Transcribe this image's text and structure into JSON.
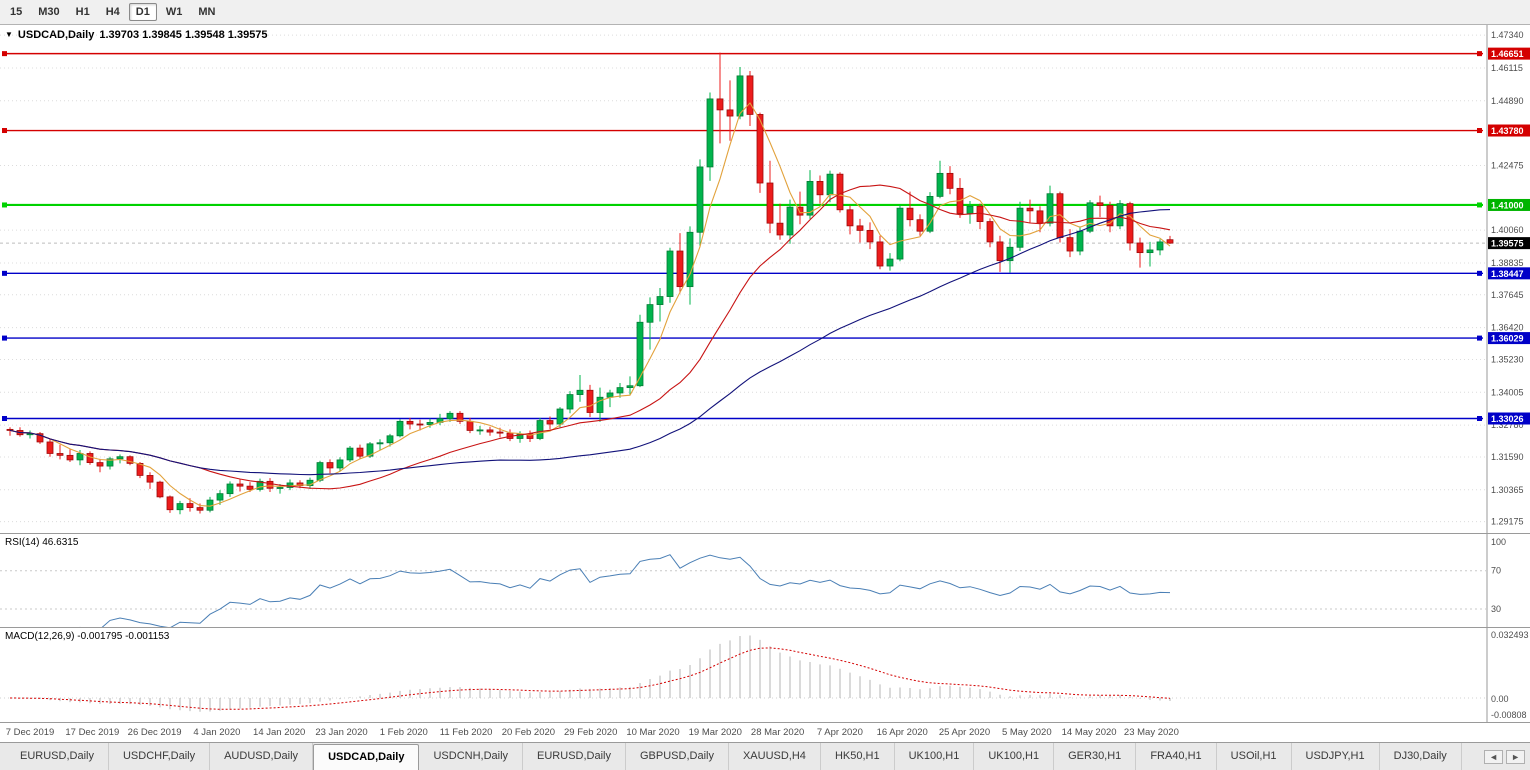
{
  "toolbar": {
    "timeframes": [
      "15",
      "M30",
      "H1",
      "H4",
      "D1",
      "W1",
      "MN"
    ],
    "active_index": 4
  },
  "chart": {
    "collapse_icon": "▼",
    "symbol_label": "USDCAD,Daily",
    "ohlc_text": "1.39703 1.39845 1.39548 1.39575"
  },
  "rsi_panel": {
    "label": "RSI(14) 46.6315"
  },
  "macd_panel": {
    "label": "MACD(12,26,9) -0.001795 -0.001153"
  },
  "tabbar": {
    "tabs": [
      "EURUSD,Daily",
      "USDCHF,Daily",
      "AUDUSD,Daily",
      "USDCAD,Daily",
      "USDCNH,Daily",
      "EURUSD,Daily",
      "GBPUSD,Daily",
      "XAUUSD,H4",
      "HK50,H1",
      "UK100,H1",
      "UK100,H1",
      "GER30,H1",
      "FRA40,H1",
      "USOil,H1",
      "USDJPY,H1",
      "DJ30,Daily"
    ],
    "active_index": 3,
    "scroll_left": "◄",
    "scroll_right": "►"
  },
  "chart_data": {
    "type": "candlestick",
    "symbol": "USDCAD",
    "period": "Daily",
    "current_price": 1.39575,
    "last_bar": {
      "open": 1.39703,
      "high": 1.39845,
      "low": 1.39548,
      "close": 1.39575
    },
    "date_labels": [
      "7 Dec 2019",
      "17 Dec 2019",
      "26 Dec 2019",
      "4 Jan 2020",
      "14 Jan 2020",
      "23 Jan 2020",
      "1 Feb 2020",
      "11 Feb 2020",
      "20 Feb 2020",
      "29 Feb 2020",
      "10 Mar 2020",
      "19 Mar 2020",
      "28 Mar 2020",
      "7 Apr 2020",
      "16 Apr 2020",
      "25 Apr 2020",
      "5 May 2020",
      "14 May 2020",
      "23 May 2020"
    ],
    "price_axis": {
      "ticks": [
        "1.47340",
        "1.46115",
        "1.44890",
        "1.42475",
        "1.40060",
        "1.38835",
        "1.37645",
        "1.36420",
        "1.35230",
        "1.34005",
        "1.32780",
        "1.31590",
        "1.30365",
        "1.29175"
      ],
      "boxes": [
        {
          "value": "1.46651",
          "color": "#d40000"
        },
        {
          "value": "1.43780",
          "color": "#d40000"
        },
        {
          "value": "1.41000",
          "color": "#00b400"
        },
        {
          "value": "1.39575",
          "color": "#000000"
        },
        {
          "value": "1.38447",
          "color": "#0000c8"
        },
        {
          "value": "1.36029",
          "color": "#0000c8"
        },
        {
          "value": "1.33026",
          "color": "#0000c8"
        }
      ]
    },
    "hlines": [
      {
        "price": 1.46651,
        "color": "#d40000",
        "width": 1.4
      },
      {
        "price": 1.4378,
        "color": "#d40000",
        "width": 1.4
      },
      {
        "price": 1.41,
        "color": "#00d200",
        "width": 2.2
      },
      {
        "price": 1.38447,
        "color": "#0000c8",
        "width": 1.4
      },
      {
        "price": 1.36029,
        "color": "#0000c8",
        "width": 1.4
      },
      {
        "price": 1.33026,
        "color": "#0000c8",
        "width": 1.4
      }
    ],
    "moving_averages": [
      {
        "period": 5,
        "color": "#e2a23c"
      },
      {
        "period": 20,
        "color": "#c81414"
      },
      {
        "period": 50,
        "color": "#12127a"
      }
    ],
    "colors": {
      "up": "#00b44c",
      "up_border": "#067a36",
      "down": "#ec1c1c",
      "down_border": "#9e0b0b"
    },
    "rsi": {
      "period": 14,
      "current": 46.6315,
      "levels": [
        "100",
        "70",
        "30"
      ],
      "color": "#4a7fb5"
    },
    "macd": {
      "params": "12,26,9",
      "current_macd": -0.001795,
      "current_signal": -0.001153,
      "axis_labels": [
        "0.032493",
        "0.00",
        "-0.00808"
      ],
      "histogram_color": "#b4b4b4",
      "signal_color": "#d40000"
    },
    "ohlc": [
      [
        1.3262,
        1.327,
        1.3238,
        1.3258
      ],
      [
        1.3258,
        1.327,
        1.3235,
        1.3242
      ],
      [
        1.3242,
        1.3258,
        1.3228,
        1.3246
      ],
      [
        1.3246,
        1.3252,
        1.3208,
        1.3215
      ],
      [
        1.3215,
        1.3228,
        1.316,
        1.3172
      ],
      [
        1.3172,
        1.3205,
        1.315,
        1.3165
      ],
      [
        1.3165,
        1.3188,
        1.314,
        1.3148
      ],
      [
        1.3148,
        1.3185,
        1.3128,
        1.3172
      ],
      [
        1.3172,
        1.318,
        1.313,
        1.3138
      ],
      [
        1.3138,
        1.3152,
        1.3102,
        1.3125
      ],
      [
        1.3125,
        1.316,
        1.3112,
        1.3152
      ],
      [
        1.3152,
        1.3168,
        1.3135,
        1.316
      ],
      [
        1.316,
        1.3165,
        1.3128,
        1.3135
      ],
      [
        1.3135,
        1.314,
        1.308,
        1.309
      ],
      [
        1.309,
        1.3102,
        1.304,
        1.3065
      ],
      [
        1.3065,
        1.307,
        1.3005,
        1.301
      ],
      [
        1.301,
        1.3015,
        1.295,
        1.2962
      ],
      [
        1.2962,
        1.2995,
        1.2945,
        1.2985
      ],
      [
        1.2985,
        1.3005,
        1.2955,
        1.297
      ],
      [
        1.297,
        1.2985,
        1.2948,
        1.296
      ],
      [
        1.296,
        1.301,
        1.2952,
        1.2998
      ],
      [
        1.2998,
        1.3035,
        1.298,
        1.3022
      ],
      [
        1.3022,
        1.3068,
        1.301,
        1.3058
      ],
      [
        1.3058,
        1.3075,
        1.303,
        1.305
      ],
      [
        1.305,
        1.3065,
        1.3028,
        1.3038
      ],
      [
        1.3038,
        1.3078,
        1.303,
        1.3068
      ],
      [
        1.3068,
        1.308,
        1.3028,
        1.3042
      ],
      [
        1.3042,
        1.3058,
        1.3022,
        1.3045
      ],
      [
        1.3045,
        1.3075,
        1.3035,
        1.3062
      ],
      [
        1.3062,
        1.3072,
        1.3042,
        1.3052
      ],
      [
        1.3052,
        1.3082,
        1.304,
        1.3072
      ],
      [
        1.3072,
        1.3145,
        1.3065,
        1.3138
      ],
      [
        1.3138,
        1.315,
        1.3098,
        1.3118
      ],
      [
        1.3118,
        1.3158,
        1.3105,
        1.3148
      ],
      [
        1.3148,
        1.32,
        1.314,
        1.3192
      ],
      [
        1.3192,
        1.3205,
        1.3152,
        1.3162
      ],
      [
        1.3162,
        1.3215,
        1.3155,
        1.3208
      ],
      [
        1.3208,
        1.3225,
        1.3185,
        1.3212
      ],
      [
        1.3212,
        1.3245,
        1.3198,
        1.3238
      ],
      [
        1.3238,
        1.33,
        1.3232,
        1.3292
      ],
      [
        1.3292,
        1.3305,
        1.3262,
        1.3282
      ],
      [
        1.3282,
        1.3298,
        1.3258,
        1.328
      ],
      [
        1.328,
        1.3302,
        1.3268,
        1.3288
      ],
      [
        1.3288,
        1.332,
        1.3278,
        1.3302
      ],
      [
        1.3302,
        1.333,
        1.329,
        1.3322
      ],
      [
        1.3322,
        1.333,
        1.3282,
        1.3292
      ],
      [
        1.3292,
        1.3305,
        1.3248,
        1.3258
      ],
      [
        1.3258,
        1.3275,
        1.3242,
        1.326
      ],
      [
        1.326,
        1.3272,
        1.3238,
        1.3252
      ],
      [
        1.3252,
        1.3268,
        1.3232,
        1.3248
      ],
      [
        1.3248,
        1.3262,
        1.3218,
        1.3228
      ],
      [
        1.3228,
        1.3255,
        1.3212,
        1.3245
      ],
      [
        1.3245,
        1.3258,
        1.3215,
        1.3228
      ],
      [
        1.3228,
        1.3305,
        1.3222,
        1.3295
      ],
      [
        1.3295,
        1.331,
        1.3262,
        1.3282
      ],
      [
        1.3282,
        1.3345,
        1.327,
        1.3338
      ],
      [
        1.3338,
        1.3405,
        1.3322,
        1.3392
      ],
      [
        1.3392,
        1.3465,
        1.3365,
        1.3408
      ],
      [
        1.3408,
        1.3428,
        1.3308,
        1.3325
      ],
      [
        1.3325,
        1.3418,
        1.329,
        1.3382
      ],
      [
        1.3382,
        1.341,
        1.3345,
        1.3398
      ],
      [
        1.3398,
        1.3435,
        1.338,
        1.3418
      ],
      [
        1.3418,
        1.346,
        1.3392,
        1.3425
      ],
      [
        1.3425,
        1.369,
        1.342,
        1.3662
      ],
      [
        1.3662,
        1.3755,
        1.356,
        1.3728
      ],
      [
        1.3728,
        1.379,
        1.3665,
        1.3758
      ],
      [
        1.3758,
        1.394,
        1.3735,
        1.3928
      ],
      [
        1.3928,
        1.3995,
        1.377,
        1.3795
      ],
      [
        1.3795,
        1.402,
        1.3728,
        1.3998
      ],
      [
        1.3998,
        1.427,
        1.3945,
        1.4242
      ],
      [
        1.4242,
        1.452,
        1.419,
        1.4496
      ],
      [
        1.4496,
        1.4669,
        1.433,
        1.4455
      ],
      [
        1.4455,
        1.4565,
        1.434,
        1.4432
      ],
      [
        1.4432,
        1.4615,
        1.442,
        1.4582
      ],
      [
        1.4582,
        1.46,
        1.4395,
        1.4438
      ],
      [
        1.4438,
        1.4445,
        1.4145,
        1.4182
      ],
      [
        1.4182,
        1.4265,
        1.3995,
        1.4032
      ],
      [
        1.4032,
        1.4105,
        1.397,
        1.3988
      ],
      [
        1.3988,
        1.412,
        1.3955,
        1.4092
      ],
      [
        1.4092,
        1.415,
        1.4028,
        1.4062
      ],
      [
        1.4062,
        1.423,
        1.4048,
        1.4188
      ],
      [
        1.4188,
        1.421,
        1.4105,
        1.4138
      ],
      [
        1.4138,
        1.4228,
        1.411,
        1.4215
      ],
      [
        1.4215,
        1.4222,
        1.4072,
        1.4082
      ],
      [
        1.4082,
        1.4098,
        1.399,
        1.4022
      ],
      [
        1.4022,
        1.4048,
        1.396,
        1.4005
      ],
      [
        1.4005,
        1.4035,
        1.3935,
        1.3962
      ],
      [
        1.3962,
        1.3985,
        1.386,
        1.3872
      ],
      [
        1.3872,
        1.392,
        1.3855,
        1.3898
      ],
      [
        1.3898,
        1.41,
        1.389,
        1.4088
      ],
      [
        1.4088,
        1.415,
        1.402,
        1.4045
      ],
      [
        1.4045,
        1.4065,
        1.3985,
        1.4002
      ],
      [
        1.4002,
        1.4148,
        1.3995,
        1.4132
      ],
      [
        1.4132,
        1.4265,
        1.4125,
        1.4218
      ],
      [
        1.4218,
        1.4245,
        1.414,
        1.4162
      ],
      [
        1.4162,
        1.42,
        1.4052,
        1.4068
      ],
      [
        1.4068,
        1.4115,
        1.403,
        1.4095
      ],
      [
        1.4095,
        1.4105,
        1.401,
        1.4038
      ],
      [
        1.4038,
        1.405,
        1.3942,
        1.3962
      ],
      [
        1.3962,
        1.3985,
        1.385,
        1.3892
      ],
      [
        1.3892,
        1.3975,
        1.3848,
        1.3942
      ],
      [
        1.3942,
        1.4112,
        1.3928,
        1.4088
      ],
      [
        1.4088,
        1.412,
        1.4032,
        1.4078
      ],
      [
        1.4078,
        1.4095,
        1.3998,
        1.4032
      ],
      [
        1.4032,
        1.4172,
        1.402,
        1.4142
      ],
      [
        1.4142,
        1.415,
        1.396,
        1.3978
      ],
      [
        1.3978,
        1.401,
        1.3905,
        1.3928
      ],
      [
        1.3928,
        1.402,
        1.3912,
        1.4002
      ],
      [
        1.4002,
        1.4118,
        1.3995,
        1.4108
      ],
      [
        1.4108,
        1.4135,
        1.4055,
        1.4098
      ],
      [
        1.4098,
        1.4112,
        1.3998,
        1.4022
      ],
      [
        1.4022,
        1.4118,
        1.401,
        1.4105
      ],
      [
        1.4105,
        1.4112,
        1.393,
        1.3958
      ],
      [
        1.3958,
        1.3978,
        1.3866,
        1.3922
      ],
      [
        1.3922,
        1.3962,
        1.387,
        1.3932
      ],
      [
        1.3932,
        1.3972,
        1.3912,
        1.3962
      ],
      [
        1.39703,
        1.39845,
        1.39548,
        1.39575
      ]
    ]
  }
}
